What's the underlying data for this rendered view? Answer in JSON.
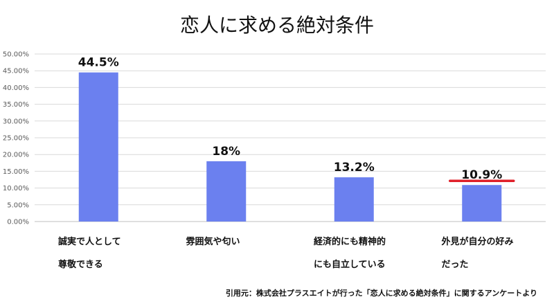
{
  "chart_data": {
    "type": "bar",
    "title": "恋人に求める絶対条件",
    "categories": [
      [
        "誠実で人として",
        "尊敬できる"
      ],
      [
        "雰囲気や匂い"
      ],
      [
        "経済的にも精神的",
        "にも自立している"
      ],
      [
        "外見が自分の好み",
        "だった"
      ]
    ],
    "values": [
      44.5,
      18,
      13.2,
      10.9
    ],
    "data_labels": [
      "44.5%",
      "18%",
      "13.2%",
      "10.9%"
    ],
    "ylim": [
      0,
      50
    ],
    "y_ticks": [
      "0.00%",
      "5.00%",
      "10.00%",
      "15.00%",
      "20.00%",
      "25.00%",
      "30.00%",
      "35.00%",
      "40.00%",
      "45.00%",
      "50.00%"
    ],
    "grid": true,
    "bar_color": "#6b80ef",
    "highlight": {
      "index": 3,
      "color": "#e0202a",
      "style": "underline"
    },
    "xlabel": "",
    "ylabel": ""
  },
  "source_note": "引用元：株式会社プラスエイトが行った「恋人に求める絶対条件」に関するアンケートより",
  "colors": {
    "grid": "#d9d9d9",
    "axis": "#bfbfbf",
    "bar": "#6b80ef",
    "highlight": "#e0202a"
  }
}
